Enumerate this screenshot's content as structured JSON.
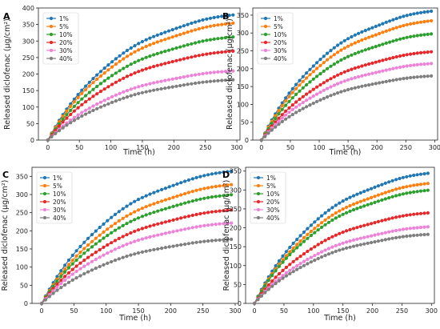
{
  "colors": {
    "1%": "#1f77b4",
    "5%": "#ff7f0e",
    "10%": "#2ca02c",
    "20%": "#e8272a",
    "30%": "#ee82d8",
    "40%": "#7f7f7f"
  },
  "chart_data": [
    {
      "type": "line",
      "panel": "A",
      "xlabel": "Time (h)",
      "ylabel": "Released diclofenac (µg/cm²)",
      "xlim": [
        -15,
        305
      ],
      "ylim": [
        0,
        400
      ],
      "xticks": [
        0,
        50,
        100,
        150,
        200,
        250,
        300
      ],
      "yticks": [
        0,
        50,
        100,
        150,
        200,
        250,
        300,
        350,
        400
      ],
      "legend": "upper-left",
      "finals": {
        "1%": 380,
        "5%": 355,
        "10%": 313,
        "20%": 270,
        "30%": 210,
        "40%": 183
      },
      "series_names": [
        "1%",
        "5%",
        "10%",
        "20%",
        "30%",
        "40%"
      ]
    },
    {
      "type": "line",
      "panel": "B",
      "xlabel": "Time (h)",
      "ylabel": "Released diclofenac (µg/cm²)",
      "xlim": [
        -15,
        305
      ],
      "ylim": [
        0,
        370
      ],
      "xticks": [
        0,
        50,
        100,
        150,
        200,
        250,
        300
      ],
      "yticks": [
        0,
        50,
        100,
        150,
        200,
        250,
        300,
        350
      ],
      "legend": "upper-left",
      "finals": {
        "1%": 362,
        "5%": 335,
        "10%": 298,
        "20%": 248,
        "30%": 215,
        "40%": 180
      },
      "series_names": [
        "1%",
        "5%",
        "10%",
        "20%",
        "30%",
        "40%"
      ]
    },
    {
      "type": "line",
      "panel": "C",
      "xlabel": "Time (h)",
      "ylabel": "Released diclofenac (µg/cm²)",
      "xlim": [
        -15,
        305
      ],
      "ylim": [
        0,
        375
      ],
      "xticks": [
        0,
        50,
        100,
        150,
        200,
        250,
        300
      ],
      "yticks": [
        0,
        50,
        100,
        150,
        200,
        250,
        300,
        350
      ],
      "legend": "upper-left",
      "finals": {
        "1%": 365,
        "5%": 328,
        "10%": 300,
        "20%": 258,
        "30%": 222,
        "40%": 177
      },
      "series_names": [
        "1%",
        "5%",
        "10%",
        "20%",
        "30%",
        "40%"
      ]
    },
    {
      "type": "line",
      "panel": "D",
      "xlabel": "Time (h)",
      "ylabel": "Released diclofenac (µg/cm²)",
      "xlim": [
        -15,
        305
      ],
      "ylim": [
        0,
        360
      ],
      "xticks": [
        0,
        50,
        100,
        150,
        200,
        250,
        300
      ],
      "yticks": [
        0,
        50,
        100,
        150,
        200,
        250,
        300,
        350
      ],
      "legend": "upper-left",
      "finals": {
        "1%": 345,
        "5%": 318,
        "10%": 300,
        "20%": 240,
        "30%": 203,
        "40%": 183
      },
      "series_names": [
        "1%",
        "5%",
        "10%",
        "20%",
        "30%",
        "40%"
      ]
    }
  ]
}
